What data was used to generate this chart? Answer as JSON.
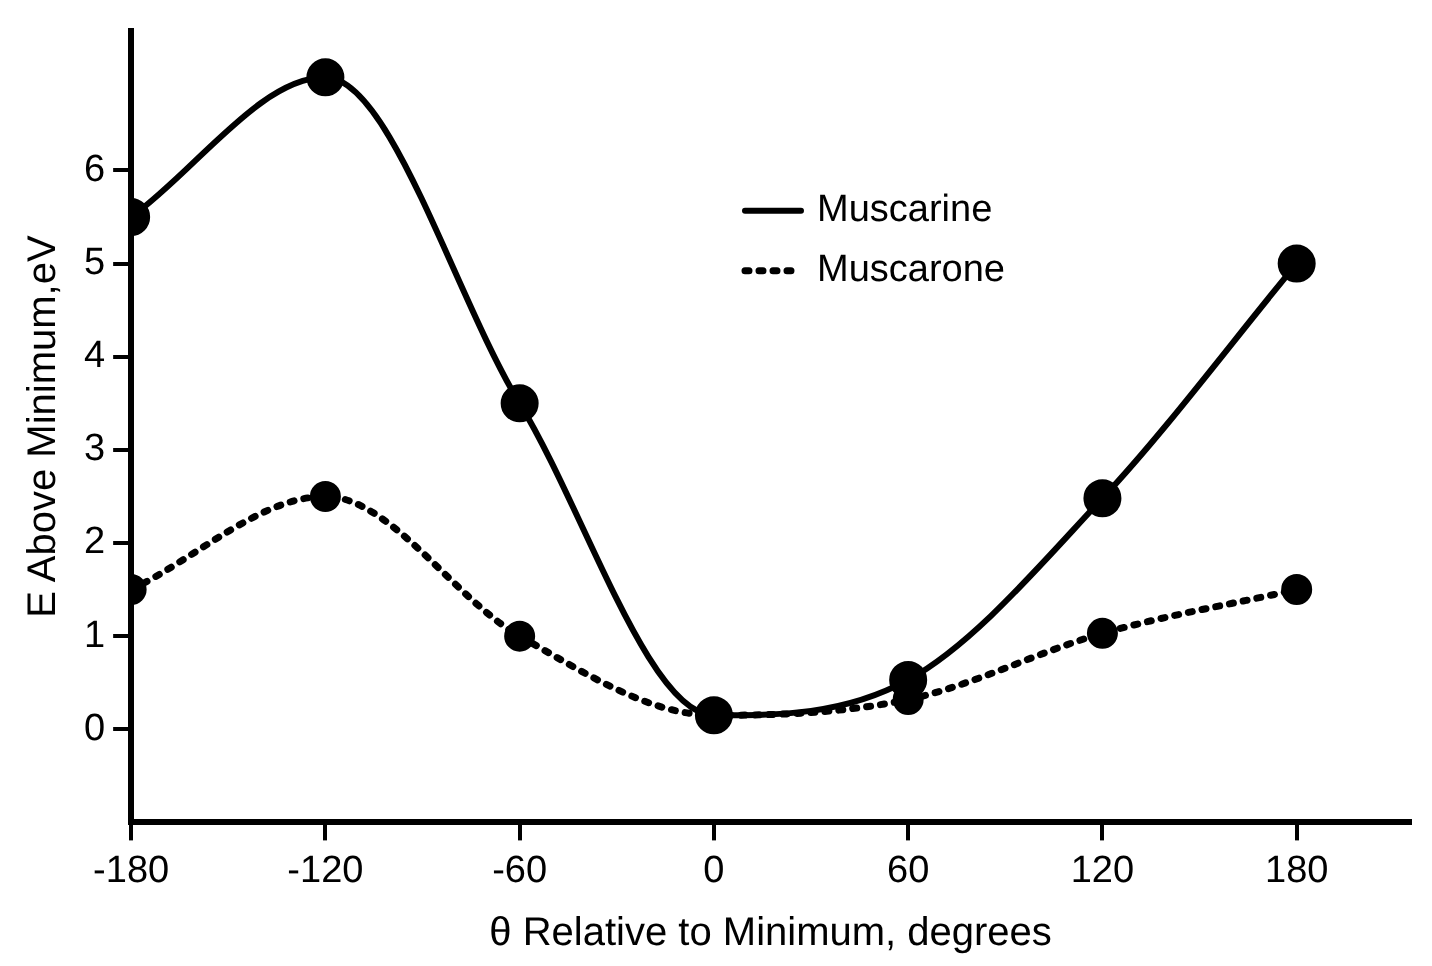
{
  "chart_data": {
    "type": "line",
    "xlabel": "θ Relative to Minimum, degrees",
    "ylabel": "E Above Minimum,eV",
    "x": [
      -180,
      -120,
      -60,
      0,
      60,
      120,
      180
    ],
    "series": [
      {
        "name": "Muscarine",
        "color": "#000000",
        "line_style": "solid",
        "values": [
          5.5,
          7.0,
          3.5,
          0.15,
          0.53,
          2.48,
          5.0
        ]
      },
      {
        "name": "Muscarone",
        "color": "#000000",
        "line_style": "dotted",
        "values": [
          1.5,
          2.5,
          1.0,
          0.15,
          0.32,
          1.03,
          1.5
        ]
      }
    ],
    "xlim": [
      -180,
      215
    ],
    "xticks": [
      -180,
      -120,
      -60,
      0,
      60,
      120,
      180
    ],
    "ylim": [
      -1,
      7.5
    ],
    "yticks": [
      0,
      1,
      2,
      3,
      4,
      5,
      6
    ],
    "marker": "circle",
    "legend": "top"
  }
}
